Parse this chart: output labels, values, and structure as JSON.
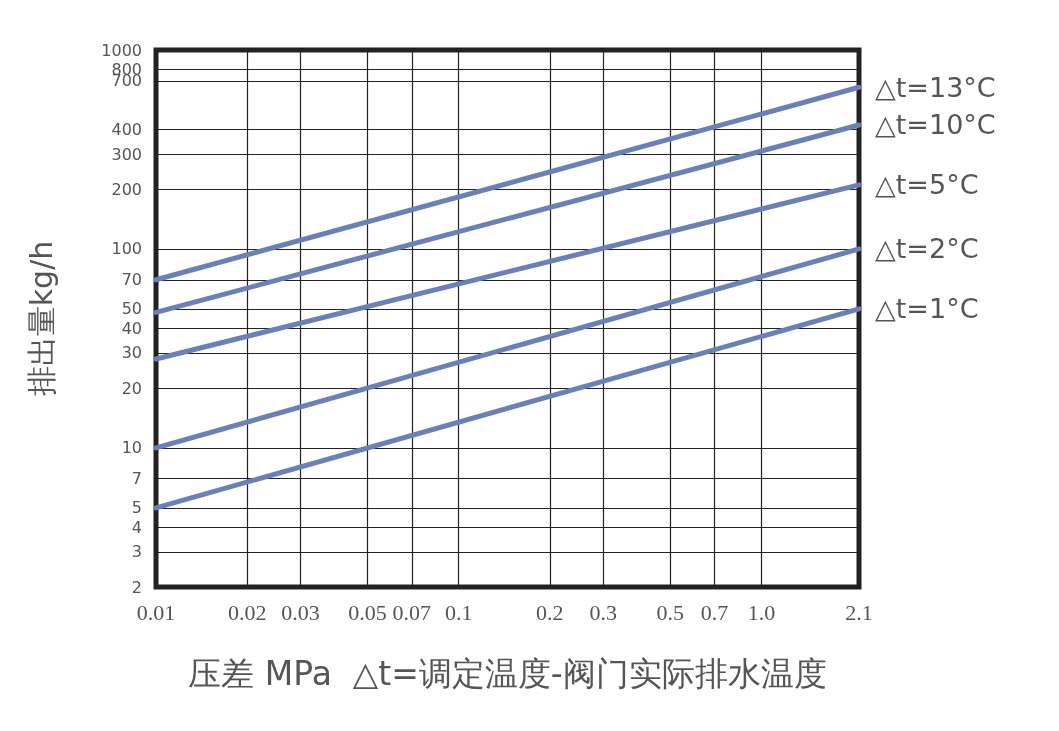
{
  "chart_data": {
    "type": "line",
    "xlabel": "压差 MPa  △t=调定温度-阀门实际排水温度",
    "ylabel": "排出量kg/h",
    "log": "xy",
    "xlim": [
      0.01,
      2.1
    ],
    "xticks": [
      0.01,
      0.02,
      0.03,
      0.05,
      0.07,
      0.1,
      0.2,
      0.3,
      0.5,
      0.7,
      {
        "value": 1,
        "label": "1.0"
      },
      2.1
    ],
    "ylim": [
      2,
      1000
    ],
    "yticks": [
      2,
      3,
      4,
      5,
      7,
      10,
      20,
      30,
      40,
      50,
      70,
      100,
      200,
      300,
      400,
      700,
      800,
      1000
    ],
    "grid": true,
    "legend": false,
    "marker": "none",
    "line_style": "solid",
    "x": [
      0.01,
      2.1
    ],
    "series": [
      {
        "name": "△t=13°C",
        "color": "#6a80b8",
        "values": [
          70,
          650
        ]
      },
      {
        "name": "△t=10°C",
        "color": "#6a80b8",
        "values": [
          48,
          420
        ]
      },
      {
        "name": "△t=5°C",
        "color": "#6a80b8",
        "values": [
          28,
          210
        ]
      },
      {
        "name": "△t=2°C",
        "color": "#6a80b8",
        "values": [
          10,
          100
        ]
      },
      {
        "name": "△t=1°C",
        "color": "#6a80b8",
        "values": [
          5,
          50
        ]
      }
    ]
  }
}
